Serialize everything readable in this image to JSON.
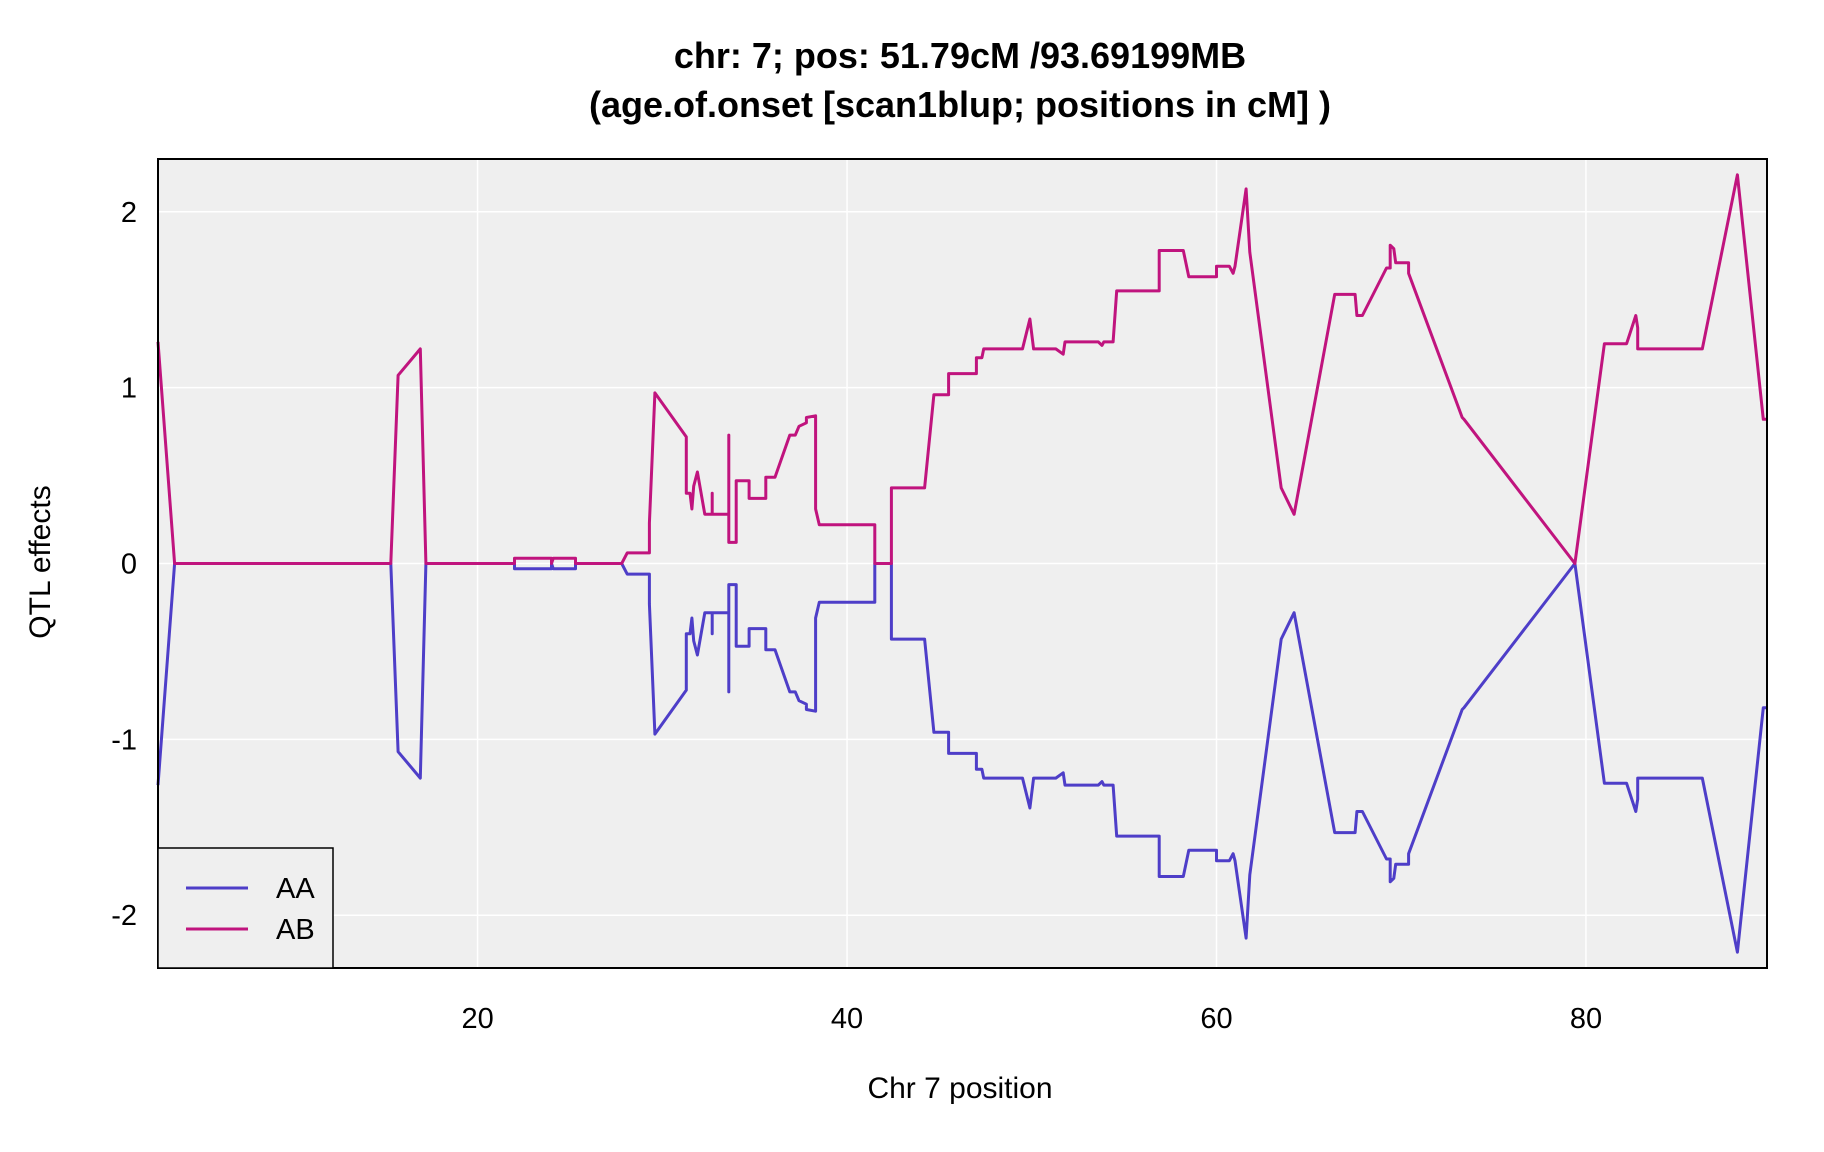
{
  "chart_data": {
    "type": "line",
    "title": "chr: 7; pos: 51.79cM /93.69199MB",
    "subtitle": "(age.of.onset [scan1blup; positions in cM] )",
    "xlabel": "Chr 7 position",
    "ylabel": "QTL effects",
    "xlim": [
      2.7,
      89.8
    ],
    "ylim": [
      -2.3,
      2.3
    ],
    "x_ticks": [
      20,
      40,
      60,
      80
    ],
    "x_tick_labels": [
      "20",
      "40",
      "60",
      "80"
    ],
    "y_ticks": [
      -2,
      -1,
      0,
      1,
      2
    ],
    "y_tick_labels": [
      "-2",
      "-1",
      "0",
      "1",
      "2"
    ],
    "grid": true,
    "background": "#efefef",
    "legend_position": "bottom-left",
    "series": [
      {
        "name": "AA",
        "color": "#4e3ec8",
        "points": [
          [
            2.7,
            -1.26
          ],
          [
            3.6,
            0
          ],
          [
            15.3,
            0
          ],
          [
            15.7,
            -1.07
          ],
          [
            16.9,
            -1.22
          ],
          [
            17.2,
            0
          ],
          [
            22.0,
            0
          ],
          [
            22.0,
            -0.03
          ],
          [
            24.0,
            -0.03
          ],
          [
            24.0,
            0
          ],
          [
            24.1,
            -0.03
          ],
          [
            25.3,
            -0.03
          ],
          [
            25.3,
            0
          ],
          [
            27.8,
            0
          ],
          [
            28.1,
            -0.06
          ],
          [
            29.3,
            -0.06
          ],
          [
            29.3,
            -0.23
          ],
          [
            29.6,
            -0.97
          ],
          [
            31.3,
            -0.72
          ],
          [
            31.3,
            -0.4
          ],
          [
            31.5,
            -0.4
          ],
          [
            31.6,
            -0.31
          ],
          [
            31.7,
            -0.44
          ],
          [
            31.9,
            -0.52
          ],
          [
            32.3,
            -0.28
          ],
          [
            32.7,
            -0.28
          ],
          [
            32.7,
            -0.4
          ],
          [
            32.7,
            -0.28
          ],
          [
            33.6,
            -0.28
          ],
          [
            33.6,
            -0.73
          ],
          [
            33.6,
            -0.12
          ],
          [
            34.0,
            -0.12
          ],
          [
            34.0,
            -0.47
          ],
          [
            34.7,
            -0.47
          ],
          [
            34.7,
            -0.37
          ],
          [
            35.6,
            -0.37
          ],
          [
            35.6,
            -0.49
          ],
          [
            36.1,
            -0.49
          ],
          [
            36.9,
            -0.73
          ],
          [
            37.2,
            -0.73
          ],
          [
            37.4,
            -0.78
          ],
          [
            37.8,
            -0.8
          ],
          [
            37.8,
            -0.83
          ],
          [
            38.3,
            -0.84
          ],
          [
            38.3,
            -0.31
          ],
          [
            38.5,
            -0.22
          ],
          [
            41.5,
            -0.22
          ],
          [
            41.5,
            0
          ],
          [
            42.4,
            0
          ],
          [
            42.4,
            -0.43
          ],
          [
            44.2,
            -0.43
          ],
          [
            44.7,
            -0.96
          ],
          [
            45.5,
            -0.96
          ],
          [
            45.5,
            -1.08
          ],
          [
            47.0,
            -1.08
          ],
          [
            47.0,
            -1.17
          ],
          [
            47.3,
            -1.17
          ],
          [
            47.4,
            -1.22
          ],
          [
            49.5,
            -1.22
          ],
          [
            49.9,
            -1.39
          ],
          [
            50.1,
            -1.22
          ],
          [
            51.3,
            -1.22
          ],
          [
            51.7,
            -1.19
          ],
          [
            51.8,
            -1.26
          ],
          [
            53.6,
            -1.26
          ],
          [
            53.8,
            -1.24
          ],
          [
            53.9,
            -1.26
          ],
          [
            54.4,
            -1.26
          ],
          [
            54.6,
            -1.55
          ],
          [
            56.9,
            -1.55
          ],
          [
            56.9,
            -1.78
          ],
          [
            58.2,
            -1.78
          ],
          [
            58.5,
            -1.63
          ],
          [
            60.0,
            -1.63
          ],
          [
            60.0,
            -1.69
          ],
          [
            60.7,
            -1.69
          ],
          [
            60.9,
            -1.65
          ],
          [
            61.0,
            -1.69
          ],
          [
            61.6,
            -2.13
          ],
          [
            61.8,
            -1.77
          ],
          [
            63.5,
            -0.43
          ],
          [
            64.2,
            -0.28
          ],
          [
            66.4,
            -1.53
          ],
          [
            67.5,
            -1.53
          ],
          [
            67.6,
            -1.41
          ],
          [
            67.9,
            -1.41
          ],
          [
            69.2,
            -1.68
          ],
          [
            69.4,
            -1.68
          ],
          [
            69.4,
            -1.81
          ],
          [
            69.6,
            -1.79
          ],
          [
            69.7,
            -1.71
          ],
          [
            70.4,
            -1.71
          ],
          [
            70.4,
            -1.65
          ],
          [
            73.3,
            -0.83
          ],
          [
            73.4,
            -0.82
          ],
          [
            79.4,
            0
          ],
          [
            81.0,
            -1.25
          ],
          [
            82.2,
            -1.25
          ],
          [
            82.7,
            -1.41
          ],
          [
            82.8,
            -1.34
          ],
          [
            82.8,
            -1.22
          ],
          [
            84.8,
            -1.22
          ],
          [
            84.8,
            -1.22
          ],
          [
            86.3,
            -1.22
          ],
          [
            88.2,
            -2.21
          ],
          [
            89.6,
            -0.82
          ],
          [
            89.8,
            -0.82
          ]
        ]
      },
      {
        "name": "AB",
        "color": "#c0147e",
        "points": [
          [
            2.7,
            1.26
          ],
          [
            3.6,
            0
          ],
          [
            15.3,
            0
          ],
          [
            15.7,
            1.07
          ],
          [
            16.9,
            1.22
          ],
          [
            17.2,
            0
          ],
          [
            22.0,
            0
          ],
          [
            22.0,
            0.03
          ],
          [
            24.0,
            0.03
          ],
          [
            24.0,
            0
          ],
          [
            24.1,
            0.03
          ],
          [
            25.3,
            0.03
          ],
          [
            25.3,
            0
          ],
          [
            27.8,
            0
          ],
          [
            28.1,
            0.06
          ],
          [
            29.3,
            0.06
          ],
          [
            29.3,
            0.23
          ],
          [
            29.6,
            0.97
          ],
          [
            31.3,
            0.72
          ],
          [
            31.3,
            0.4
          ],
          [
            31.5,
            0.4
          ],
          [
            31.6,
            0.31
          ],
          [
            31.7,
            0.44
          ],
          [
            31.9,
            0.52
          ],
          [
            32.3,
            0.28
          ],
          [
            32.7,
            0.28
          ],
          [
            32.7,
            0.4
          ],
          [
            32.7,
            0.28
          ],
          [
            33.6,
            0.28
          ],
          [
            33.6,
            0.73
          ],
          [
            33.6,
            0.12
          ],
          [
            34.0,
            0.12
          ],
          [
            34.0,
            0.47
          ],
          [
            34.7,
            0.47
          ],
          [
            34.7,
            0.37
          ],
          [
            35.6,
            0.37
          ],
          [
            35.6,
            0.49
          ],
          [
            36.1,
            0.49
          ],
          [
            36.9,
            0.73
          ],
          [
            37.2,
            0.73
          ],
          [
            37.4,
            0.78
          ],
          [
            37.8,
            0.8
          ],
          [
            37.8,
            0.83
          ],
          [
            38.3,
            0.84
          ],
          [
            38.3,
            0.31
          ],
          [
            38.5,
            0.22
          ],
          [
            41.5,
            0.22
          ],
          [
            41.5,
            0
          ],
          [
            42.4,
            0
          ],
          [
            42.4,
            0.43
          ],
          [
            44.2,
            0.43
          ],
          [
            44.7,
            0.96
          ],
          [
            45.5,
            0.96
          ],
          [
            45.5,
            1.08
          ],
          [
            47.0,
            1.08
          ],
          [
            47.0,
            1.17
          ],
          [
            47.3,
            1.17
          ],
          [
            47.4,
            1.22
          ],
          [
            49.5,
            1.22
          ],
          [
            49.9,
            1.39
          ],
          [
            50.1,
            1.22
          ],
          [
            51.3,
            1.22
          ],
          [
            51.7,
            1.19
          ],
          [
            51.8,
            1.26
          ],
          [
            53.6,
            1.26
          ],
          [
            53.8,
            1.24
          ],
          [
            53.9,
            1.26
          ],
          [
            54.4,
            1.26
          ],
          [
            54.6,
            1.55
          ],
          [
            56.9,
            1.55
          ],
          [
            56.9,
            1.78
          ],
          [
            58.2,
            1.78
          ],
          [
            58.5,
            1.63
          ],
          [
            60.0,
            1.63
          ],
          [
            60.0,
            1.69
          ],
          [
            60.7,
            1.69
          ],
          [
            60.9,
            1.65
          ],
          [
            61.0,
            1.69
          ],
          [
            61.6,
            2.13
          ],
          [
            61.8,
            1.77
          ],
          [
            63.5,
            0.43
          ],
          [
            64.2,
            0.28
          ],
          [
            66.4,
            1.53
          ],
          [
            67.5,
            1.53
          ],
          [
            67.6,
            1.41
          ],
          [
            67.9,
            1.41
          ],
          [
            69.2,
            1.68
          ],
          [
            69.4,
            1.68
          ],
          [
            69.4,
            1.81
          ],
          [
            69.6,
            1.79
          ],
          [
            69.7,
            1.71
          ],
          [
            70.4,
            1.71
          ],
          [
            70.4,
            1.65
          ],
          [
            73.3,
            0.83
          ],
          [
            73.4,
            0.82
          ],
          [
            79.4,
            0
          ],
          [
            81.0,
            1.25
          ],
          [
            82.2,
            1.25
          ],
          [
            82.7,
            1.41
          ],
          [
            82.8,
            1.34
          ],
          [
            82.8,
            1.22
          ],
          [
            84.8,
            1.22
          ],
          [
            84.8,
            1.22
          ],
          [
            86.3,
            1.22
          ],
          [
            88.2,
            2.21
          ],
          [
            89.6,
            0.82
          ],
          [
            89.8,
            0.82
          ]
        ]
      }
    ]
  }
}
